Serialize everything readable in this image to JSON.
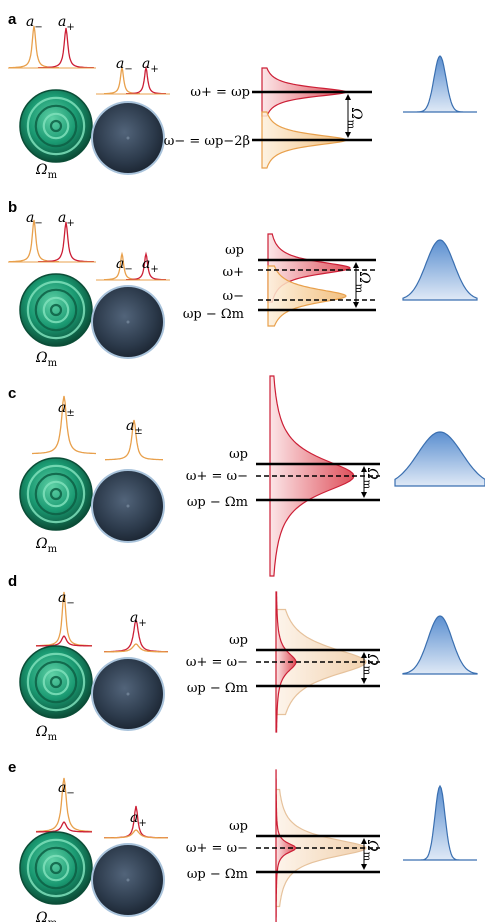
{
  "colors": {
    "orange_stroke": "#e8a04c",
    "orange_fill": "#f6c98f",
    "red_stroke": "#cc1f36",
    "red_fill": "#f0a0a8",
    "green": "#1a9a72",
    "green_dark": "#0d5f44",
    "gray_disk": "#3a4a5c",
    "blue_curve": "#3a6fb0",
    "blue_fill": "#6fa0d8"
  },
  "panels": [
    {
      "label": "a",
      "mode_left_1": "a−",
      "mode_left_2": "a+",
      "mode_right_1": "a−",
      "mode_right_2": "a+",
      "omega_m": "Ωm",
      "eq_top": "ω+ = ωp",
      "eq_mid": "",
      "eq_bottom": "ω− = ωp−2β",
      "gap_label": "Ωm",
      "peak_width": 6
    },
    {
      "label": "b",
      "mode_left_1": "a−",
      "mode_left_2": "a+",
      "mode_right_1": "a−",
      "mode_right_2": "a+",
      "omega_m": "Ωm",
      "eq_top": "ωp",
      "eq_mid_1": "ω+",
      "eq_mid_2": "ω−",
      "eq_bottom": "ωp − Ωm",
      "gap_label": "Ωm",
      "peak_width": 14
    },
    {
      "label": "c",
      "mode_left_1": "a±",
      "mode_right_1": "a±",
      "omega_m": "Ωm",
      "eq_top": "ωp",
      "eq_mid": "ω+ = ω−",
      "eq_bottom": "ωp − Ωm",
      "gap_label": "Ωm",
      "peak_width": 22
    },
    {
      "label": "d",
      "mode_left_1": "a−",
      "mode_right_1": "a+",
      "omega_m": "Ωm",
      "eq_top": "ωp",
      "eq_mid": "ω+ = ω−",
      "eq_bottom": "ωp − Ωm",
      "gap_label": "Ωm",
      "peak_width": 12
    },
    {
      "label": "e",
      "mode_left_1": "a−",
      "mode_right_1": "a+",
      "omega_m": "Ωm",
      "eq_top": "ωp",
      "eq_mid": "ω+ = ω−",
      "eq_bottom": "ωp − Ωm",
      "gap_label": "Ωm",
      "peak_width": 5
    }
  ]
}
